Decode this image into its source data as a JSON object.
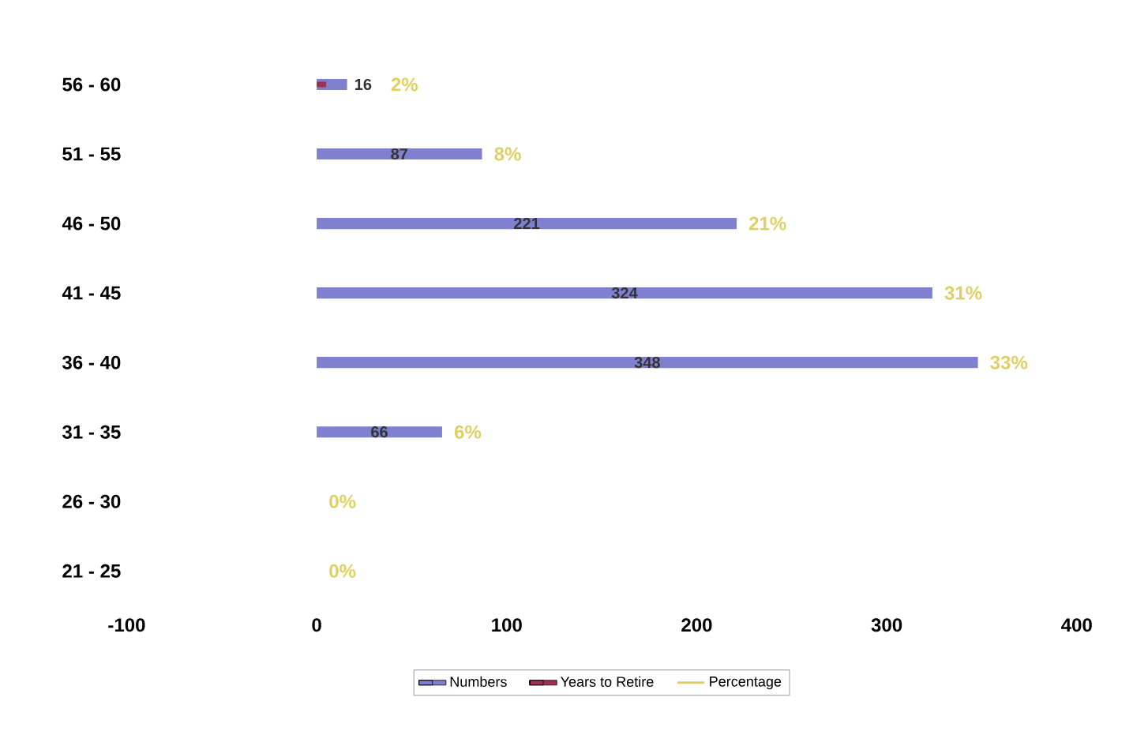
{
  "chart_data": {
    "type": "bar",
    "orientation": "horizontal",
    "categories": [
      "56 - 60",
      "51 - 55",
      "46 - 50",
      "41 - 45",
      "36 - 40",
      "31 - 35",
      "26 - 30",
      "21 - 25"
    ],
    "series": [
      {
        "name": "Numbers",
        "color": "#8080d0",
        "values": [
          16,
          87,
          221,
          324,
          348,
          66,
          0,
          0
        ],
        "value_labels": [
          "16",
          "87",
          "221",
          "324",
          "348",
          "66",
          null,
          null
        ]
      },
      {
        "name": "Years to Retire",
        "color": "#a03050",
        "values": [
          5,
          null,
          null,
          null,
          null,
          null,
          null,
          null
        ]
      },
      {
        "name": "Percentage",
        "type": "line",
        "color": "#e0d060",
        "values": [
          null,
          null,
          null,
          null,
          null,
          null,
          null,
          null
        ]
      }
    ],
    "annotations": [
      {
        "text": "2%",
        "x": 16,
        "y": "56 - 60"
      },
      {
        "text": "8%",
        "x": 87,
        "y": "51 - 55"
      },
      {
        "text": "21%",
        "x": 221,
        "y": "46 - 50"
      },
      {
        "text": "31%",
        "x": 324,
        "y": "41 - 45"
      },
      {
        "text": "33%",
        "x": 348,
        "y": "36 - 40"
      },
      {
        "text": "6%",
        "x": 66,
        "y": "31 - 35"
      },
      {
        "text": "0%",
        "x": 0,
        "y": "26 - 30"
      },
      {
        "text": "0%",
        "x": 0,
        "y": "21 - 25"
      }
    ],
    "xlim": [
      -100,
      400
    ],
    "xticks": [
      -100,
      0,
      100,
      200,
      300,
      400
    ],
    "grid": false,
    "legend": "bottom"
  }
}
